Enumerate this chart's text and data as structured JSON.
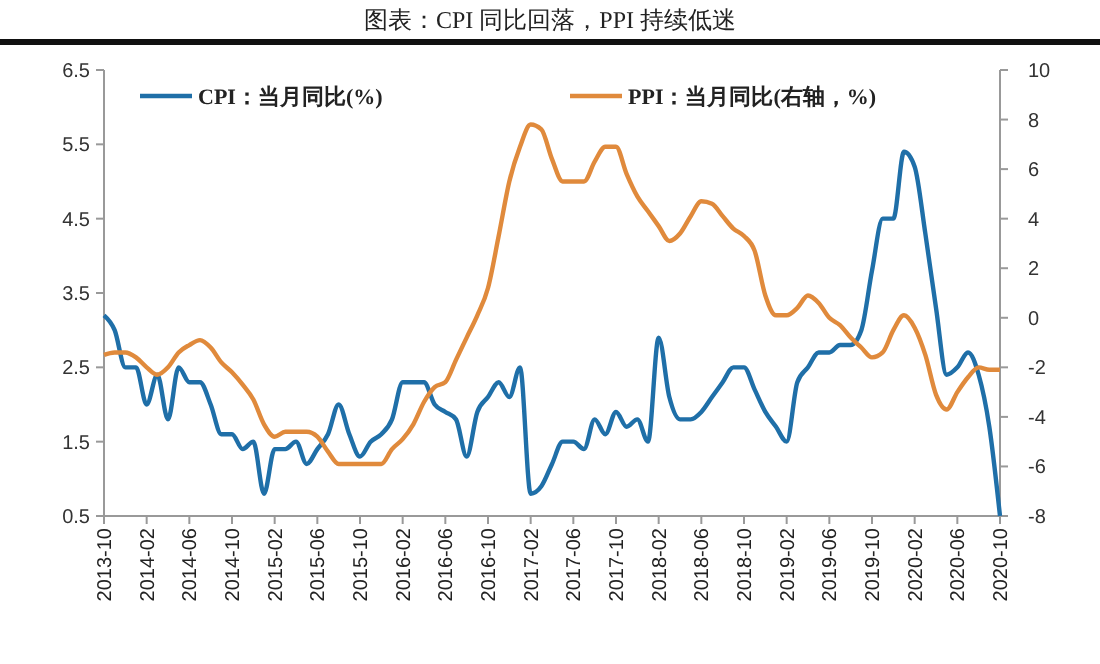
{
  "chart_data": {
    "type": "line",
    "title": "图表：CPI 同比回落，PPI 持续低迷",
    "categories": [
      "2013-10",
      null,
      null,
      null,
      "2014-02",
      null,
      null,
      null,
      "2014-06",
      null,
      null,
      null,
      "2014-10",
      null,
      null,
      null,
      "2015-02",
      null,
      null,
      null,
      "2015-06",
      null,
      null,
      null,
      "2015-10",
      null,
      null,
      null,
      "2016-02",
      null,
      null,
      null,
      "2016-06",
      null,
      null,
      null,
      "2016-10",
      null,
      null,
      null,
      "2017-02",
      null,
      null,
      null,
      "2017-06",
      null,
      null,
      null,
      "2017-10",
      null,
      null,
      null,
      "2018-02",
      null,
      null,
      null,
      "2018-06",
      null,
      null,
      null,
      "2018-10",
      null,
      null,
      null,
      "2019-02",
      null,
      null,
      null,
      "2019-06",
      null,
      null,
      null,
      "2019-10",
      null,
      null,
      null,
      "2020-02",
      null,
      null,
      null,
      "2020-06",
      null,
      null,
      null,
      "2020-10"
    ],
    "series": [
      {
        "name": "CPI：当月同比(%)",
        "color": "#1f6fa8",
        "values": [
          3.2,
          3.0,
          2.5,
          2.5,
          2.0,
          2.4,
          1.8,
          2.5,
          2.3,
          2.3,
          2.0,
          1.6,
          1.6,
          1.4,
          1.5,
          0.8,
          1.4,
          1.4,
          1.5,
          1.2,
          1.4,
          1.6,
          2.0,
          1.6,
          1.3,
          1.5,
          1.6,
          1.8,
          2.3,
          2.3,
          2.3,
          2.0,
          1.9,
          1.8,
          1.3,
          1.9,
          2.1,
          2.3,
          2.1,
          2.5,
          0.8,
          0.9,
          1.2,
          1.5,
          1.5,
          1.4,
          1.8,
          1.6,
          1.9,
          1.7,
          1.8,
          1.5,
          2.9,
          2.1,
          1.8,
          1.8,
          1.9,
          2.1,
          2.3,
          2.5,
          2.5,
          2.2,
          1.9,
          1.7,
          1.5,
          2.3,
          2.5,
          2.7,
          2.7,
          2.8,
          2.8,
          3.0,
          3.8,
          4.5,
          4.5,
          5.4,
          5.2,
          4.3,
          3.3,
          2.4,
          2.5,
          2.7,
          2.4,
          1.7,
          0.5
        ]
      },
      {
        "name": "PPI：当月同比(右轴，%)",
        "color": "#e08a3c",
        "axis": "y2",
        "values": [
          -1.5,
          -1.4,
          -1.4,
          -1.6,
          -2.0,
          -2.3,
          -2.0,
          -1.4,
          -1.1,
          -0.9,
          -1.2,
          -1.8,
          -2.2,
          -2.7,
          -3.3,
          -4.3,
          -4.8,
          -4.6,
          -4.6,
          -4.6,
          -4.8,
          -5.4,
          -5.9,
          -5.9,
          -5.9,
          -5.9,
          -5.9,
          -5.3,
          -4.9,
          -4.3,
          -3.4,
          -2.8,
          -2.6,
          -1.7,
          -0.8,
          0.1,
          1.2,
          3.3,
          5.5,
          6.9,
          7.8,
          7.6,
          6.4,
          5.5,
          5.5,
          5.5,
          6.3,
          6.9,
          6.9,
          5.8,
          4.9,
          4.3,
          3.7,
          3.1,
          3.4,
          4.1,
          4.7,
          4.6,
          4.1,
          3.6,
          3.3,
          2.7,
          0.9,
          0.1,
          0.1,
          0.4,
          0.9,
          0.6,
          0.0,
          -0.3,
          -0.8,
          -1.2,
          -1.6,
          -1.4,
          -0.5,
          0.1,
          -0.4,
          -1.5,
          -3.1,
          -3.7,
          -3.0,
          -2.4,
          -2.0,
          -2.1,
          -2.1
        ]
      }
    ],
    "ylim": [
      0.5,
      6.5
    ],
    "yticks": [
      0.5,
      1.5,
      2.5,
      3.5,
      4.5,
      5.5,
      6.5
    ],
    "y2lim": [
      -8,
      10
    ],
    "y2ticks": [
      -8,
      -6,
      -4,
      -2,
      0,
      2,
      4,
      6,
      8,
      10
    ],
    "legend": "top",
    "grid": false
  }
}
